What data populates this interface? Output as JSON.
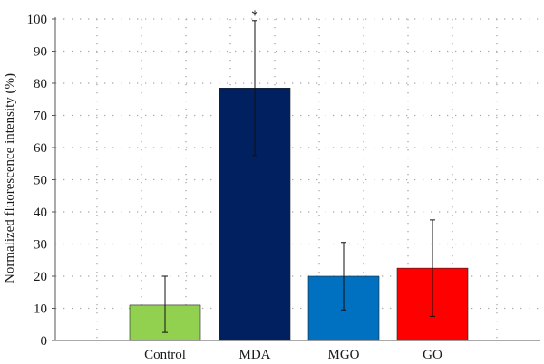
{
  "chart_data": {
    "type": "bar",
    "categories": [
      "Control",
      "MDA",
      "MGO",
      "GO"
    ],
    "values": [
      11,
      78.5,
      20,
      22.5
    ],
    "error_low": [
      2.5,
      57.5,
      9.5,
      7.5
    ],
    "error_high": [
      20,
      99.5,
      30.5,
      37.5
    ],
    "colors": [
      "#92d050",
      "#002060",
      "#0070c0",
      "#ff0000"
    ],
    "ylabel": "Normalized fluorescence intensity (%)",
    "xlabel": "",
    "ylim": [
      0,
      100
    ],
    "yticks": [
      "0",
      "10",
      "20",
      "30",
      "40",
      "50",
      "60",
      "70",
      "80",
      "90",
      "100"
    ],
    "grid": true,
    "annotations": [
      {
        "category": "MDA",
        "text": "*"
      }
    ]
  }
}
